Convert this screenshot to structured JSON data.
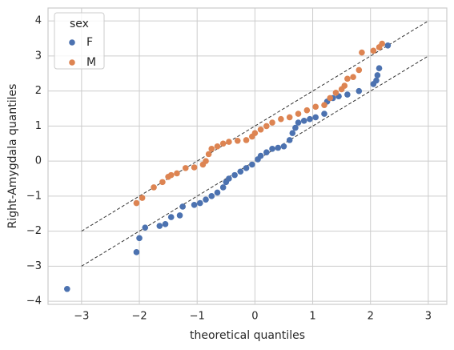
{
  "chart_data": {
    "type": "scatter",
    "x_label": "theoretical quantiles",
    "y_label": "Right-Amygdala quantiles",
    "legend_title": "sex",
    "legend": "upper left",
    "grid": true,
    "xlim": [
      -3.58,
      3.32
    ],
    "ylim": [
      -4.09,
      4.37
    ],
    "xticks": [
      {
        "value": -3,
        "label": "−3"
      },
      {
        "value": -2,
        "label": "−2"
      },
      {
        "value": -1,
        "label": "−1"
      },
      0,
      1,
      2,
      3
    ],
    "yticks": [
      {
        "value": -4,
        "label": "−4"
      },
      {
        "value": -3,
        "label": "−3"
      },
      {
        "value": -2,
        "label": "−2"
      },
      {
        "value": -1,
        "label": "−1"
      },
      0,
      1,
      2,
      3,
      4
    ],
    "reference_lines": [
      {
        "x": [
          -3,
          3
        ],
        "values": [
          -2,
          4
        ]
      },
      {
        "x": [
          -3,
          3
        ],
        "values": [
          -3,
          3
        ]
      }
    ],
    "series": [
      {
        "name": "F",
        "color": "#4c72b0",
        "x": [
          -3.25,
          -2.05,
          -2.0,
          -1.9,
          -1.65,
          -1.55,
          -1.45,
          -1.3,
          -1.25,
          -1.05,
          -0.95,
          -0.85,
          -0.75,
          -0.65,
          -0.55,
          -0.5,
          -0.45,
          -0.35,
          -0.25,
          -0.15,
          -0.05,
          0.05,
          0.1,
          0.2,
          0.3,
          0.4,
          0.5,
          0.6,
          0.65,
          0.7,
          0.75,
          0.85,
          0.95,
          1.05,
          1.2,
          1.25,
          1.35,
          1.45,
          1.6,
          1.8,
          2.05,
          2.1,
          2.12,
          2.15,
          2.3
        ],
        "values": [
          -3.65,
          -2.6,
          -2.2,
          -1.9,
          -1.85,
          -1.8,
          -1.6,
          -1.55,
          -1.3,
          -1.25,
          -1.2,
          -1.1,
          -1.0,
          -0.9,
          -0.75,
          -0.6,
          -0.5,
          -0.4,
          -0.3,
          -0.2,
          -0.1,
          0.05,
          0.15,
          0.25,
          0.35,
          0.38,
          0.42,
          0.6,
          0.8,
          0.95,
          1.1,
          1.15,
          1.2,
          1.25,
          1.35,
          1.7,
          1.8,
          1.85,
          1.9,
          2.0,
          2.2,
          2.3,
          2.45,
          2.65,
          3.3
        ]
      },
      {
        "name": "M",
        "color": "#dd8452",
        "x": [
          -2.05,
          -1.95,
          -1.75,
          -1.6,
          -1.5,
          -1.45,
          -1.35,
          -1.2,
          -1.05,
          -0.9,
          -0.85,
          -0.8,
          -0.75,
          -0.65,
          -0.55,
          -0.45,
          -0.3,
          -0.15,
          -0.05,
          0.0,
          0.1,
          0.2,
          0.3,
          0.45,
          0.6,
          0.75,
          0.9,
          1.05,
          1.2,
          1.3,
          1.4,
          1.5,
          1.55,
          1.6,
          1.7,
          1.8,
          1.85,
          2.05,
          2.15,
          2.2
        ],
        "values": [
          -1.2,
          -1.05,
          -0.75,
          -0.6,
          -0.45,
          -0.4,
          -0.35,
          -0.2,
          -0.18,
          -0.1,
          0.0,
          0.2,
          0.35,
          0.42,
          0.5,
          0.55,
          0.58,
          0.6,
          0.7,
          0.8,
          0.9,
          1.0,
          1.1,
          1.2,
          1.25,
          1.35,
          1.45,
          1.55,
          1.6,
          1.8,
          1.95,
          2.05,
          2.15,
          2.35,
          2.4,
          2.6,
          3.1,
          3.15,
          3.25,
          3.35
        ]
      }
    ]
  }
}
